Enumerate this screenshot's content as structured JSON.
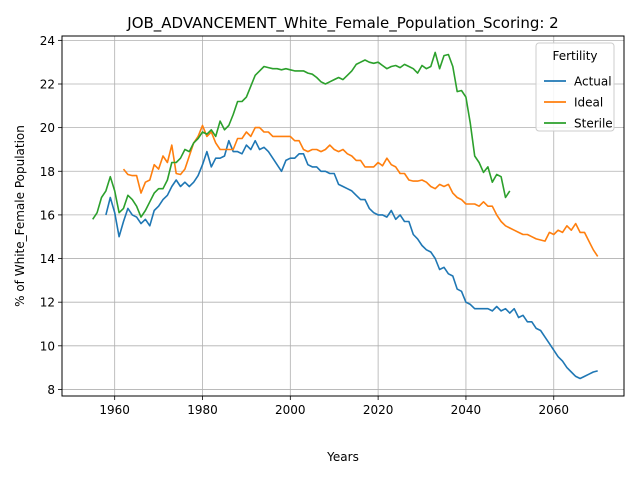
{
  "chart_data": {
    "type": "line",
    "title": "JOB_ADVANCEMENT_White_Female_Population_Scoring: 2",
    "xlabel": "Years",
    "ylabel": "% of White_Female Population",
    "xlim": [
      1948,
      2076
    ],
    "ylim": [
      7.7,
      24.2
    ],
    "xticks": [
      1960,
      1980,
      2000,
      2020,
      2040,
      2060
    ],
    "yticks": [
      8,
      10,
      12,
      14,
      16,
      18,
      20,
      22,
      24
    ],
    "grid": true,
    "legend": {
      "title": "Fertility",
      "position": "top-right"
    },
    "series": [
      {
        "name": "Actual",
        "color": "#1f77b4",
        "x": [
          1958,
          1959,
          1960,
          1961,
          1962,
          1963,
          1964,
          1965,
          1966,
          1967,
          1968,
          1969,
          1970,
          1971,
          1972,
          1973,
          1974,
          1975,
          1976,
          1977,
          1978,
          1979,
          1980,
          1981,
          1982,
          1983,
          1984,
          1985,
          1986,
          1987,
          1988,
          1989,
          1990,
          1991,
          1992,
          1993,
          1994,
          1995,
          1996,
          1997,
          1998,
          1999,
          2000,
          2001,
          2002,
          2003,
          2004,
          2005,
          2006,
          2007,
          2008,
          2009,
          2010,
          2011,
          2012,
          2013,
          2014,
          2015,
          2016,
          2017,
          2018,
          2019,
          2020,
          2021,
          2022,
          2023,
          2024,
          2025,
          2026,
          2027,
          2028,
          2029,
          2030,
          2031,
          2032,
          2033,
          2034,
          2035,
          2036,
          2037,
          2038,
          2039,
          2040,
          2041,
          2042,
          2043,
          2044,
          2045,
          2046,
          2047,
          2048,
          2049,
          2050,
          2051,
          2052,
          2053,
          2054,
          2055,
          2056,
          2057,
          2058,
          2059,
          2060,
          2061,
          2062,
          2063,
          2064,
          2065,
          2066,
          2067,
          2068,
          2069,
          2070
        ],
        "values": [
          16.0,
          16.8,
          16.1,
          15.0,
          15.7,
          16.3,
          16.0,
          15.9,
          15.6,
          15.8,
          15.5,
          16.2,
          16.4,
          16.7,
          16.9,
          17.3,
          17.6,
          17.3,
          17.5,
          17.3,
          17.5,
          17.8,
          18.3,
          18.9,
          18.2,
          18.6,
          18.6,
          18.7,
          19.4,
          18.9,
          18.9,
          18.8,
          19.2,
          19.0,
          19.4,
          19.0,
          19.1,
          18.9,
          18.6,
          18.3,
          18.0,
          18.5,
          18.6,
          18.6,
          18.8,
          18.8,
          18.3,
          18.2,
          18.2,
          18.0,
          18.0,
          17.9,
          17.9,
          17.4,
          17.3,
          17.2,
          17.1,
          16.9,
          16.7,
          16.7,
          16.3,
          16.1,
          16.0,
          16.0,
          15.9,
          16.2,
          15.8,
          16.0,
          15.7,
          15.7,
          15.1,
          14.9,
          14.6,
          14.4,
          14.3,
          14.0,
          13.5,
          13.6,
          13.3,
          13.2,
          12.6,
          12.5,
          12.0,
          11.9,
          11.7,
          11.7,
          11.7,
          11.7,
          11.6,
          11.8,
          11.6,
          11.7,
          11.5,
          11.7,
          11.3,
          11.4,
          11.1,
          11.1,
          10.8,
          10.7,
          10.4,
          10.1,
          9.8,
          9.5,
          9.3,
          9.0,
          8.8,
          8.6,
          8.5,
          8.6,
          8.7,
          8.8,
          8.85
        ]
      },
      {
        "name": "Ideal",
        "color": "#ff7f0e",
        "x": [
          1962,
          1963,
          1964,
          1965,
          1966,
          1967,
          1968,
          1969,
          1970,
          1971,
          1972,
          1973,
          1974,
          1975,
          1976,
          1977,
          1978,
          1979,
          1980,
          1981,
          1982,
          1983,
          1984,
          1985,
          1986,
          1987,
          1988,
          1989,
          1990,
          1991,
          1992,
          1993,
          1994,
          1995,
          1996,
          1997,
          1998,
          1999,
          2000,
          2001,
          2002,
          2003,
          2004,
          2005,
          2006,
          2007,
          2008,
          2009,
          2010,
          2011,
          2012,
          2013,
          2014,
          2015,
          2016,
          2017,
          2018,
          2019,
          2020,
          2021,
          2022,
          2023,
          2024,
          2025,
          2026,
          2027,
          2028,
          2029,
          2030,
          2031,
          2032,
          2033,
          2034,
          2035,
          2036,
          2037,
          2038,
          2039,
          2040,
          2041,
          2042,
          2043,
          2044,
          2045,
          2046,
          2047,
          2048,
          2049,
          2050,
          2051,
          2052,
          2053,
          2054,
          2055,
          2056,
          2057,
          2058,
          2059,
          2060,
          2061,
          2062,
          2063,
          2064,
          2065,
          2066,
          2067,
          2068,
          2069,
          2070
        ],
        "values": [
          18.1,
          17.85,
          17.8,
          17.8,
          17.0,
          17.5,
          17.6,
          18.3,
          18.1,
          18.7,
          18.4,
          19.2,
          17.9,
          17.85,
          18.1,
          18.7,
          19.3,
          19.6,
          20.1,
          19.6,
          19.8,
          19.3,
          19.0,
          19.0,
          19.0,
          19.0,
          19.5,
          19.5,
          19.8,
          19.6,
          20.0,
          20.0,
          19.8,
          19.8,
          19.6,
          19.6,
          19.6,
          19.6,
          19.6,
          19.4,
          19.4,
          19.0,
          18.9,
          19.0,
          19.0,
          18.9,
          19.0,
          19.2,
          19.0,
          18.9,
          19.0,
          18.8,
          18.7,
          18.5,
          18.5,
          18.2,
          18.2,
          18.2,
          18.4,
          18.25,
          18.6,
          18.3,
          18.2,
          17.9,
          17.9,
          17.6,
          17.55,
          17.55,
          17.6,
          17.5,
          17.3,
          17.2,
          17.4,
          17.3,
          17.4,
          17.0,
          16.8,
          16.7,
          16.5,
          16.5,
          16.5,
          16.4,
          16.6,
          16.4,
          16.4,
          16.0,
          15.7,
          15.5,
          15.4,
          15.3,
          15.2,
          15.1,
          15.1,
          15.0,
          14.9,
          14.85,
          14.8,
          15.2,
          15.1,
          15.3,
          15.2,
          15.5,
          15.3,
          15.6,
          15.2,
          15.2,
          14.8,
          14.4,
          14.1
        ]
      },
      {
        "name": "Sterile",
        "color": "#2ca02c",
        "x": [
          1955,
          1956,
          1957,
          1958,
          1959,
          1960,
          1961,
          1962,
          1963,
          1964,
          1965,
          1966,
          1967,
          1968,
          1969,
          1970,
          1971,
          1972,
          1973,
          1974,
          1975,
          1976,
          1977,
          1978,
          1979,
          1980,
          1981,
          1982,
          1983,
          1984,
          1985,
          1986,
          1987,
          1988,
          1989,
          1990,
          1991,
          1992,
          1993,
          1994,
          1995,
          1996,
          1997,
          1998,
          1999,
          2000,
          2001,
          2002,
          2003,
          2004,
          2005,
          2006,
          2007,
          2008,
          2009,
          2010,
          2011,
          2012,
          2013,
          2014,
          2015,
          2016,
          2017,
          2018,
          2019,
          2020,
          2021,
          2022,
          2023,
          2024,
          2025,
          2026,
          2027,
          2028,
          2029,
          2030,
          2031,
          2032,
          2033,
          2034,
          2035,
          2036,
          2037,
          2038,
          2039,
          2040,
          2041,
          2042,
          2043,
          2044,
          2045,
          2046,
          2047,
          2048,
          2049,
          2050
        ],
        "values": [
          15.8,
          16.1,
          16.8,
          17.1,
          17.75,
          17.1,
          16.1,
          16.3,
          16.9,
          16.7,
          16.4,
          15.9,
          16.2,
          16.6,
          17.0,
          17.2,
          17.2,
          17.6,
          18.4,
          18.4,
          18.6,
          19.0,
          18.9,
          19.3,
          19.5,
          19.8,
          19.7,
          19.9,
          19.6,
          20.3,
          19.9,
          20.1,
          20.6,
          21.2,
          21.2,
          21.4,
          21.9,
          22.4,
          22.6,
          22.8,
          22.75,
          22.7,
          22.7,
          22.65,
          22.7,
          22.65,
          22.6,
          22.6,
          22.6,
          22.5,
          22.45,
          22.3,
          22.1,
          22.0,
          22.1,
          22.2,
          22.3,
          22.2,
          22.4,
          22.6,
          22.9,
          23.0,
          23.1,
          23.0,
          22.95,
          23.0,
          22.85,
          22.7,
          22.8,
          22.85,
          22.75,
          22.9,
          22.8,
          22.7,
          22.5,
          22.85,
          22.7,
          22.8,
          23.45,
          22.7,
          23.3,
          23.35,
          22.8,
          21.65,
          21.7,
          21.4,
          20.2,
          18.7,
          18.4,
          17.95,
          18.2,
          17.5,
          17.85,
          17.75,
          16.8,
          17.1
        ]
      }
    ]
  }
}
